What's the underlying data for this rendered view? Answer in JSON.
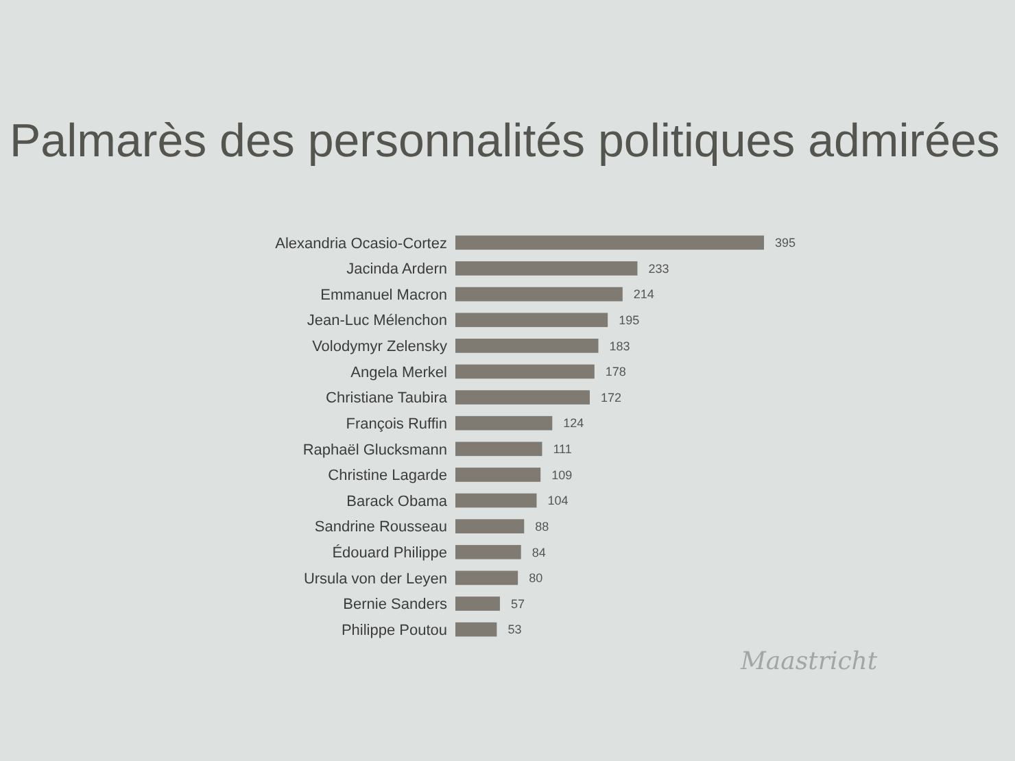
{
  "chart_data": {
    "type": "bar",
    "orientation": "horizontal",
    "title": "Palmarès des personnalités politiques admirées",
    "categories": [
      "Alexandria Ocasio-Cortez",
      "Jacinda Ardern",
      "Emmanuel Macron",
      "Jean-Luc Mélenchon",
      "Volodymyr Zelensky",
      "Angela Merkel",
      "Christiane Taubira",
      "François Ruffin",
      "Raphaël Glucksmann",
      "Christine Lagarde",
      "Barack Obama",
      "Sandrine Rousseau",
      "Édouard Philippe",
      "Ursula von der Leyen",
      "Bernie Sanders",
      "Philippe Poutou"
    ],
    "values": [
      395,
      233,
      214,
      195,
      183,
      178,
      172,
      124,
      111,
      109,
      104,
      88,
      84,
      80,
      57,
      53
    ],
    "color": "#7f7a72",
    "data_labels": true,
    "annotations": [
      "Maastricht"
    ]
  }
}
